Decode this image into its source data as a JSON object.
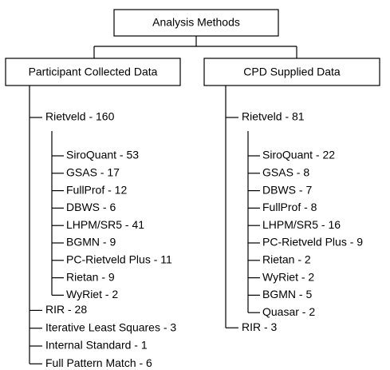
{
  "root": {
    "label": "Analysis Methods"
  },
  "branches": [
    {
      "label": "Participant Collected Data",
      "items": [
        {
          "label": "Rietveld - 160",
          "children": [
            "SiroQuant - 53",
            "GSAS - 17",
            "FullProf - 12",
            "DBWS - 6",
            "LHPM/SR5 - 41",
            "BGMN - 9",
            "PC-Rietveld Plus - 11",
            "Rietan - 9",
            "WyRiet - 2"
          ]
        },
        {
          "label": "RIR - 28"
        },
        {
          "label": "Iterative Least Squares - 3"
        },
        {
          "label": "Internal Standard - 1"
        },
        {
          "label": "Full Pattern Match - 6"
        }
      ]
    },
    {
      "label": "CPD Supplied Data",
      "items": [
        {
          "label": "Rietveld - 81",
          "children": [
            "SiroQuant - 22",
            "GSAS - 8",
            "DBWS - 7",
            "FullProf - 8",
            "LHPM/SR5 - 16",
            "PC-Rietveld Plus - 9",
            "Rietan - 2",
            "WyRiet - 2",
            "BGMN - 5",
            "Quasar - 2"
          ]
        },
        {
          "label": "RIR - 3"
        }
      ]
    }
  ]
}
